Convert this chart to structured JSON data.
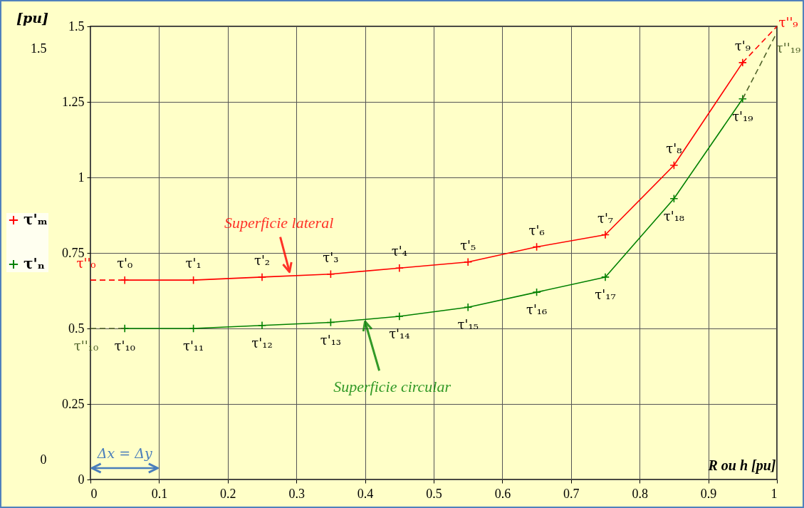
{
  "chart_data": {
    "type": "line",
    "xlabel": "R ou h [pu]",
    "y2label": "[pu]",
    "xlim": [
      0,
      1
    ],
    "xticks": [
      0,
      0.1,
      0.2,
      0.3,
      0.4,
      0.5,
      0.6,
      0.7,
      0.8,
      0.9,
      1
    ],
    "ylim": [
      0,
      1.5
    ],
    "yticks": [
      0,
      0.25,
      0.5,
      0.75,
      1,
      1.25,
      1.5
    ],
    "y2lim": [
      0,
      1.5
    ],
    "y2ticks": [
      0,
      1.5
    ],
    "x": [
      0.05,
      0.15,
      0.25,
      0.35,
      0.45,
      0.55,
      0.65,
      0.75,
      0.85,
      0.95
    ],
    "series": [
      {
        "name": "τ'ₘ",
        "color": "#ff0000",
        "marker": "cross",
        "line_style": "solid",
        "values": [
          0.66,
          0.66,
          0.67,
          0.68,
          0.7,
          0.72,
          0.77,
          0.81,
          1.04,
          1.38
        ]
      },
      {
        "name": "τ'ₙ",
        "color": "#008000",
        "marker": "cross",
        "line_style": "solid",
        "values": [
          0.5,
          0.5,
          0.51,
          0.52,
          0.54,
          0.57,
          0.62,
          0.67,
          0.93,
          1.26
        ]
      },
      {
        "color": "#ff0000",
        "marker": "none",
        "line_style": "dashed",
        "x": [
          0,
          0.05,
          0.5,
          0.95,
          1
        ],
        "values": [
          0.66,
          0.66,
          null,
          1.38,
          1.5
        ]
      },
      {
        "color": "#4f6228",
        "marker": "none",
        "line_style": "dashed",
        "x": [
          0,
          0.05,
          0.5,
          0.95,
          1
        ],
        "values": [
          0.5,
          0.5,
          null,
          1.26,
          1.48
        ]
      }
    ],
    "grid": true,
    "legend": "left",
    "annotations": [
      {
        "text": "τ'₀",
        "x": 0.05,
        "y": 0.66
      },
      {
        "text": "τ'₁",
        "x": 0.15,
        "y": 0.66
      },
      {
        "text": "τ'₂",
        "x": 0.25,
        "y": 0.67
      },
      {
        "text": "τ'₃",
        "x": 0.35,
        "y": 0.68
      },
      {
        "text": "τ'₄",
        "x": 0.45,
        "y": 0.7
      },
      {
        "text": "τ'₅",
        "x": 0.55,
        "y": 0.72
      },
      {
        "text": "τ'₆",
        "x": 0.65,
        "y": 0.77
      },
      {
        "text": "τ'₇",
        "x": 0.75,
        "y": 0.81
      },
      {
        "text": "τ'₈",
        "x": 0.85,
        "y": 1.04
      },
      {
        "text": "τ'₉",
        "x": 0.95,
        "y": 1.38
      },
      {
        "text": "τ'₁₀",
        "x": 0.05,
        "y": 0.5
      },
      {
        "text": "τ'₁₁",
        "x": 0.15,
        "y": 0.5
      },
      {
        "text": "τ'₁₂",
        "x": 0.25,
        "y": 0.51
      },
      {
        "text": "τ'₁₃",
        "x": 0.35,
        "y": 0.52
      },
      {
        "text": "τ'₁₄",
        "x": 0.45,
        "y": 0.54
      },
      {
        "text": "τ'₁₅",
        "x": 0.55,
        "y": 0.57
      },
      {
        "text": "τ'₁₆",
        "x": 0.65,
        "y": 0.62
      },
      {
        "text": "τ'₁₇",
        "x": 0.75,
        "y": 0.67
      },
      {
        "text": "τ'₁₈",
        "x": 0.85,
        "y": 0.93
      },
      {
        "text": "τ'₁₉",
        "x": 0.95,
        "y": 1.26
      },
      {
        "text": "τ''₀",
        "x": 0,
        "y": 0.66
      },
      {
        "text": "τ''₁₀",
        "x": 0,
        "y": 0.5
      },
      {
        "text": "τ''₉",
        "x": 1,
        "y": 1.5
      },
      {
        "text": "τ''₁₉",
        "x": 1,
        "y": 1.48
      },
      {
        "text": "Superficie lateral",
        "x": 0.29,
        "y": 0.68
      },
      {
        "text": "Superficie circular",
        "x": 0.4,
        "y": 0.53
      },
      "Δx = Δy"
    ]
  }
}
